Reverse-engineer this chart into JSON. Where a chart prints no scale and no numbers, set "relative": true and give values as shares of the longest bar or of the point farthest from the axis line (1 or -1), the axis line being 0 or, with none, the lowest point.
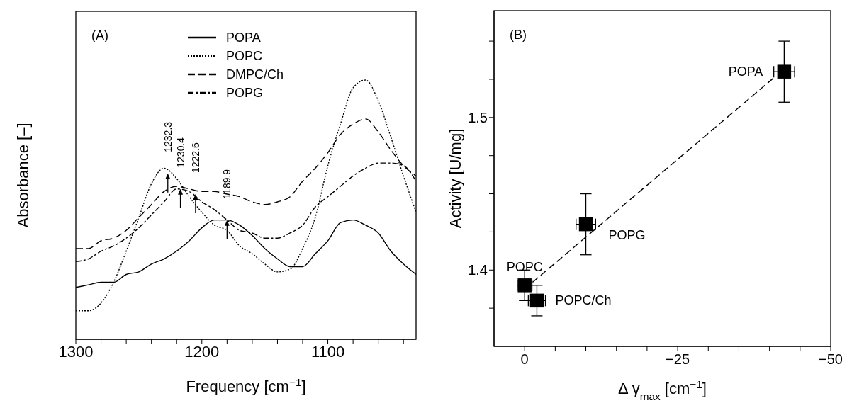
{
  "chart_data": [
    {
      "type": "line",
      "relative": true,
      "xlabel": "Frequency [cm$^{−1}$]",
      "ylabel": "Absorbance [–]",
      "legend": "top",
      "xlim": [
        1300,
        1030
      ],
      "xticks": [
        1300,
        {
          "value": 1280,
          "label": null
        },
        {
          "value": 1260,
          "label": null
        },
        {
          "value": 1240,
          "label": null
        },
        {
          "value": 1220,
          "label": null
        },
        1200,
        {
          "value": 1180,
          "label": null
        },
        {
          "value": 1160,
          "label": null
        },
        {
          "value": 1140,
          "label": null
        },
        {
          "value": 1120,
          "label": null
        },
        1100,
        {
          "value": 1080,
          "label": null
        },
        {
          "value": 1060,
          "label": null
        },
        {
          "value": 1040,
          "label": null
        }
      ],
      "x": [
        1300,
        1290,
        1280,
        1270,
        1260,
        1250,
        1240,
        1230,
        1220,
        1210,
        1200,
        1190,
        1180,
        1170,
        1160,
        1150,
        1140,
        1130,
        1120,
        1110,
        1100,
        1090,
        1080,
        1070,
        1060,
        1050,
        1040,
        1030
      ],
      "series": [
        {
          "name": "POPA",
          "color": "#000000",
          "line_style": "solid",
          "values": [
            0.2,
            0.21,
            0.22,
            0.22,
            0.25,
            0.26,
            0.29,
            0.31,
            0.34,
            0.38,
            0.43,
            0.46,
            0.46,
            0.44,
            0.4,
            0.35,
            0.31,
            0.28,
            0.28,
            0.33,
            0.38,
            0.45,
            0.46,
            0.44,
            0.41,
            0.34,
            0.29,
            0.25
          ]
        },
        {
          "name": "POPC",
          "color": "#000000",
          "line_style": "dotted",
          "values": [
            0.11,
            0.11,
            0.14,
            0.22,
            0.34,
            0.47,
            0.6,
            0.66,
            0.62,
            0.55,
            0.49,
            0.44,
            0.42,
            0.36,
            0.33,
            0.29,
            0.26,
            0.27,
            0.35,
            0.47,
            0.67,
            0.83,
            0.97,
            1.0,
            0.92,
            0.78,
            0.63,
            0.49
          ]
        },
        {
          "name": "DMPC/Ch",
          "color": "#000000",
          "line_style": "dashed",
          "values": [
            0.35,
            0.35,
            0.38,
            0.39,
            0.42,
            0.47,
            0.52,
            0.57,
            0.59,
            0.58,
            0.57,
            0.57,
            0.56,
            0.55,
            0.53,
            0.52,
            0.53,
            0.55,
            0.61,
            0.66,
            0.72,
            0.79,
            0.83,
            0.85,
            0.8,
            0.73,
            0.67,
            0.63
          ]
        },
        {
          "name": "POPG",
          "color": "#000000",
          "line_style": "dashdot",
          "values": [
            0.3,
            0.31,
            0.34,
            0.36,
            0.39,
            0.43,
            0.48,
            0.53,
            0.58,
            0.57,
            0.53,
            0.5,
            0.46,
            0.42,
            0.41,
            0.39,
            0.39,
            0.41,
            0.44,
            0.51,
            0.55,
            0.59,
            0.63,
            0.66,
            0.68,
            0.68,
            0.67,
            0.61
          ]
        }
      ],
      "annotations": [
        "(A)",
        {
          "text": "1232.3",
          "x": 1227,
          "y": 0.64
        },
        {
          "text": "1230.4",
          "x": 1217,
          "y": 0.58
        },
        {
          "text": "1222.6",
          "x": 1205,
          "y": 0.56
        },
        {
          "text": "1189.9",
          "x": 1180,
          "y": 0.46
        }
      ]
    },
    {
      "type": "scatter",
      "xlabel": "Δ γ$_{max}$  [cm$^{−1}$]",
      "ylabel": "Activity [U/mg]",
      "xlim": [
        5,
        -50
      ],
      "xticks": [
        0,
        {
          "value": -5,
          "label": null
        },
        {
          "value": -10,
          "label": null
        },
        {
          "value": -15,
          "label": null
        },
        {
          "value": -20,
          "label": null
        },
        {
          "value": -25,
          "label": "−25"
        },
        {
          "value": -30,
          "label": null
        },
        {
          "value": -35,
          "label": null
        },
        {
          "value": -40,
          "label": null
        },
        {
          "value": -45,
          "label": null
        },
        {
          "value": -50,
          "label": "−50"
        }
      ],
      "ylim": [
        1.35,
        1.57
      ],
      "yticks": [
        {
          "value": 1.375,
          "label": null
        },
        1.4,
        {
          "value": 1.425,
          "label": null
        },
        {
          "value": 1.45,
          "label": null
        },
        {
          "value": 1.475,
          "label": null
        },
        1.5,
        {
          "value": 1.525,
          "label": null
        },
        {
          "value": 1.55,
          "label": null
        }
      ],
      "series": [
        {
          "type": "scatter",
          "marker": "square",
          "color": "#000000",
          "x": [
            0,
            -2,
            -10,
            -42.4
          ],
          "values": [
            1.39,
            1.38,
            1.43,
            1.53
          ],
          "errors": [
            0.01,
            0.01,
            0.02,
            0.02
          ],
          "xerrors": [
            1.2,
            1.4,
            1.6,
            1.7
          ]
        },
        {
          "type": "line",
          "color": "#000000",
          "line_style": "dashed",
          "x": [
            -1.3,
            -41
          ],
          "values": [
            1.392,
            1.527
          ]
        }
      ],
      "annotations": [
        "(B)",
        {
          "text": "POPA",
          "x": -42.4,
          "y": 1.53
        },
        {
          "text": "POPG",
          "x": -10,
          "y": 1.43
        },
        {
          "text": "POPC",
          "x": 0,
          "y": 1.39
        },
        {
          "text": "POPC/Ch",
          "x": -2,
          "y": 1.38
        }
      ]
    }
  ]
}
